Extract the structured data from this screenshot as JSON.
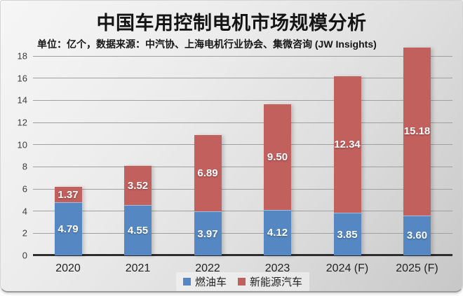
{
  "slide": {
    "title": "中国车用控制电机市场规模分析",
    "subtitle": "单位：亿个，数据来源：中汽协、上海电机行业协会、集微咨询 (JW Insights)"
  },
  "chart_data": {
    "type": "bar",
    "stacked": true,
    "title": "中国车用控制电机市场规模分析",
    "unit_note": "单位：亿个",
    "source_note": "数据来源：中汽协、上海电机行业协会、集微咨询 (JW Insights)",
    "categories": [
      "2020",
      "2021",
      "2022",
      "2023",
      "2024 (F)",
      "2025 (F)"
    ],
    "series": [
      {
        "name": "燃油车",
        "color": "#5588c2",
        "values": [
          4.79,
          4.55,
          3.97,
          4.12,
          3.85,
          3.6
        ]
      },
      {
        "name": "新能源汽车",
        "color": "#c2605e",
        "values": [
          1.37,
          3.52,
          6.89,
          9.5,
          12.34,
          15.18
        ]
      }
    ],
    "ylim": [
      0,
      18
    ],
    "ytick_step": 2,
    "grid": true,
    "legend_position": "bottom",
    "value_label_color": "#ffffff",
    "value_label_decimals": 2
  }
}
